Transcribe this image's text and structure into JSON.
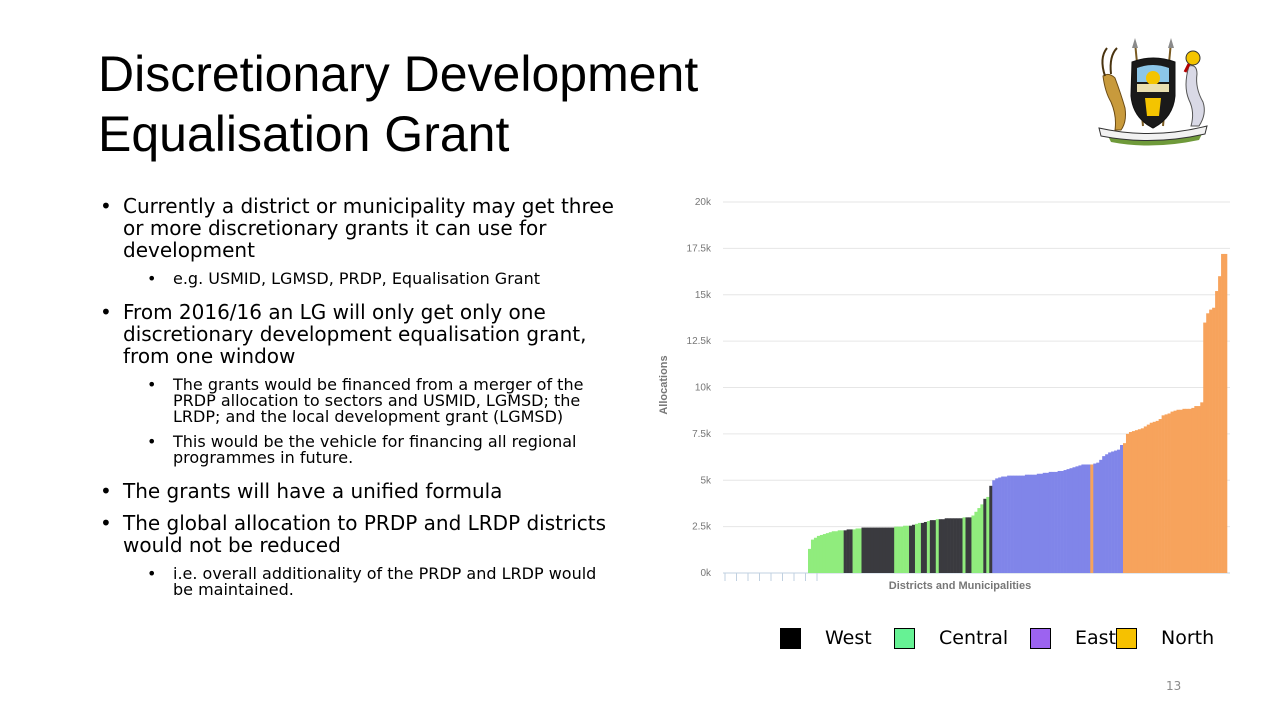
{
  "title": {
    "line1": "Discretionary Development",
    "line2": "Equalisation Grant"
  },
  "bullets": [
    {
      "text": "Currently a district or municipality may get three or more discretionary grants it can use for development",
      "sub": [
        "e.g. USMID, LGMSD, PRDP, Equalisation Grant"
      ]
    },
    {
      "text": "From 2016/16 an LG will only get only one discretionary development equalisation grant, from one window",
      "sub": [
        "The grants would be financed from a merger of the PRDP allocation to sectors and USMID, LGMSD; the LRDP; and the local development  grant (LGMSD)",
        "This would be the vehicle for financing all regional programmes in future."
      ]
    },
    {
      "text": "The grants will have a unified formula",
      "sub": []
    },
    {
      "text": "The global allocation to PRDP and LRDP districts would not be reduced",
      "sub": [
        "i.e. overall additionality of the PRDP and LRDP would be maintained."
      ]
    }
  ],
  "chart_data": {
    "type": "bar",
    "xlabel": "Districts and Municipalities",
    "ylabel": "Allocations",
    "ylim": [
      0,
      20000
    ],
    "yticks": [
      "0k",
      "2.5k",
      "5k",
      "7.5k",
      "10k",
      "12.5k",
      "15k",
      "17.5k",
      "20k"
    ],
    "grid": true,
    "region_colors": {
      "West": "#3a3a3f",
      "Central": "#90ec7d",
      "East": "#8085e9",
      "North": "#f7a35c"
    },
    "series": [
      {
        "region": "Central",
        "values": [
          1300,
          1800,
          1900,
          2000,
          2050,
          2100,
          2150,
          2200,
          2250,
          2250,
          2300,
          2300
        ]
      },
      {
        "region": "West",
        "values": [
          2300,
          2350,
          2350
        ]
      },
      {
        "region": "Central",
        "values": [
          2350,
          2400,
          2400
        ]
      },
      {
        "region": "West",
        "values": [
          2450,
          2450,
          2450,
          2450,
          2450,
          2450,
          2450,
          2450,
          2450,
          2450,
          2450
        ]
      },
      {
        "region": "Central",
        "values": [
          2500,
          2500,
          2500,
          2550,
          2550
        ]
      },
      {
        "region": "West",
        "values": [
          2550,
          2600
        ]
      },
      {
        "region": "Central",
        "values": [
          2650,
          2700
        ]
      },
      {
        "region": "West",
        "values": [
          2700,
          2750
        ]
      },
      {
        "region": "Central",
        "values": [
          2800
        ]
      },
      {
        "region": "West",
        "values": [
          2850,
          2850
        ]
      },
      {
        "region": "Central",
        "values": [
          2900
        ]
      },
      {
        "region": "West",
        "values": [
          2900,
          2900,
          2950,
          2950,
          2950,
          2950,
          2950,
          2950
        ]
      },
      {
        "region": "Central",
        "values": [
          3000
        ]
      },
      {
        "region": "West",
        "values": [
          3000,
          3000
        ]
      },
      {
        "region": "Central",
        "values": [
          3100,
          3300,
          3500,
          3700
        ]
      },
      {
        "region": "West",
        "values": [
          4000
        ]
      },
      {
        "region": "Central",
        "values": [
          4100
        ]
      },
      {
        "region": "West",
        "values": [
          4700
        ]
      },
      {
        "region": "East",
        "values": [
          5000,
          5100,
          5150,
          5200,
          5200,
          5250,
          5250,
          5250,
          5250,
          5250,
          5250,
          5300,
          5300,
          5300,
          5300,
          5350,
          5350,
          5400,
          5400,
          5450,
          5450,
          5450,
          5500,
          5500,
          5550,
          5600,
          5650,
          5700,
          5750,
          5800,
          5850,
          5850,
          5850
        ]
      },
      {
        "region": "North",
        "values": [
          5850
        ]
      },
      {
        "region": "East",
        "values": [
          5900,
          5950,
          6100,
          6300,
          6400,
          6500,
          6550,
          6600,
          6650,
          6900
        ]
      },
      {
        "region": "North",
        "values": [
          7000,
          7500,
          7600,
          7650,
          7700,
          7750,
          7800,
          7900,
          8000,
          8100,
          8150,
          8200,
          8300,
          8500,
          8550,
          8600,
          8700,
          8750,
          8800,
          8800,
          8850,
          8850,
          8850,
          8900,
          9000,
          9000,
          9200,
          13500,
          14000,
          14200,
          14300,
          15200,
          16000,
          17200,
          17200
        ]
      }
    ]
  },
  "legend": [
    {
      "label": "West",
      "color": "#000000"
    },
    {
      "label": "Central",
      "color": "#66f294"
    },
    {
      "label": "East",
      "color": "#9c63f0"
    },
    {
      "label": "North",
      "color": "#f6c100"
    }
  ],
  "page_number": "13"
}
